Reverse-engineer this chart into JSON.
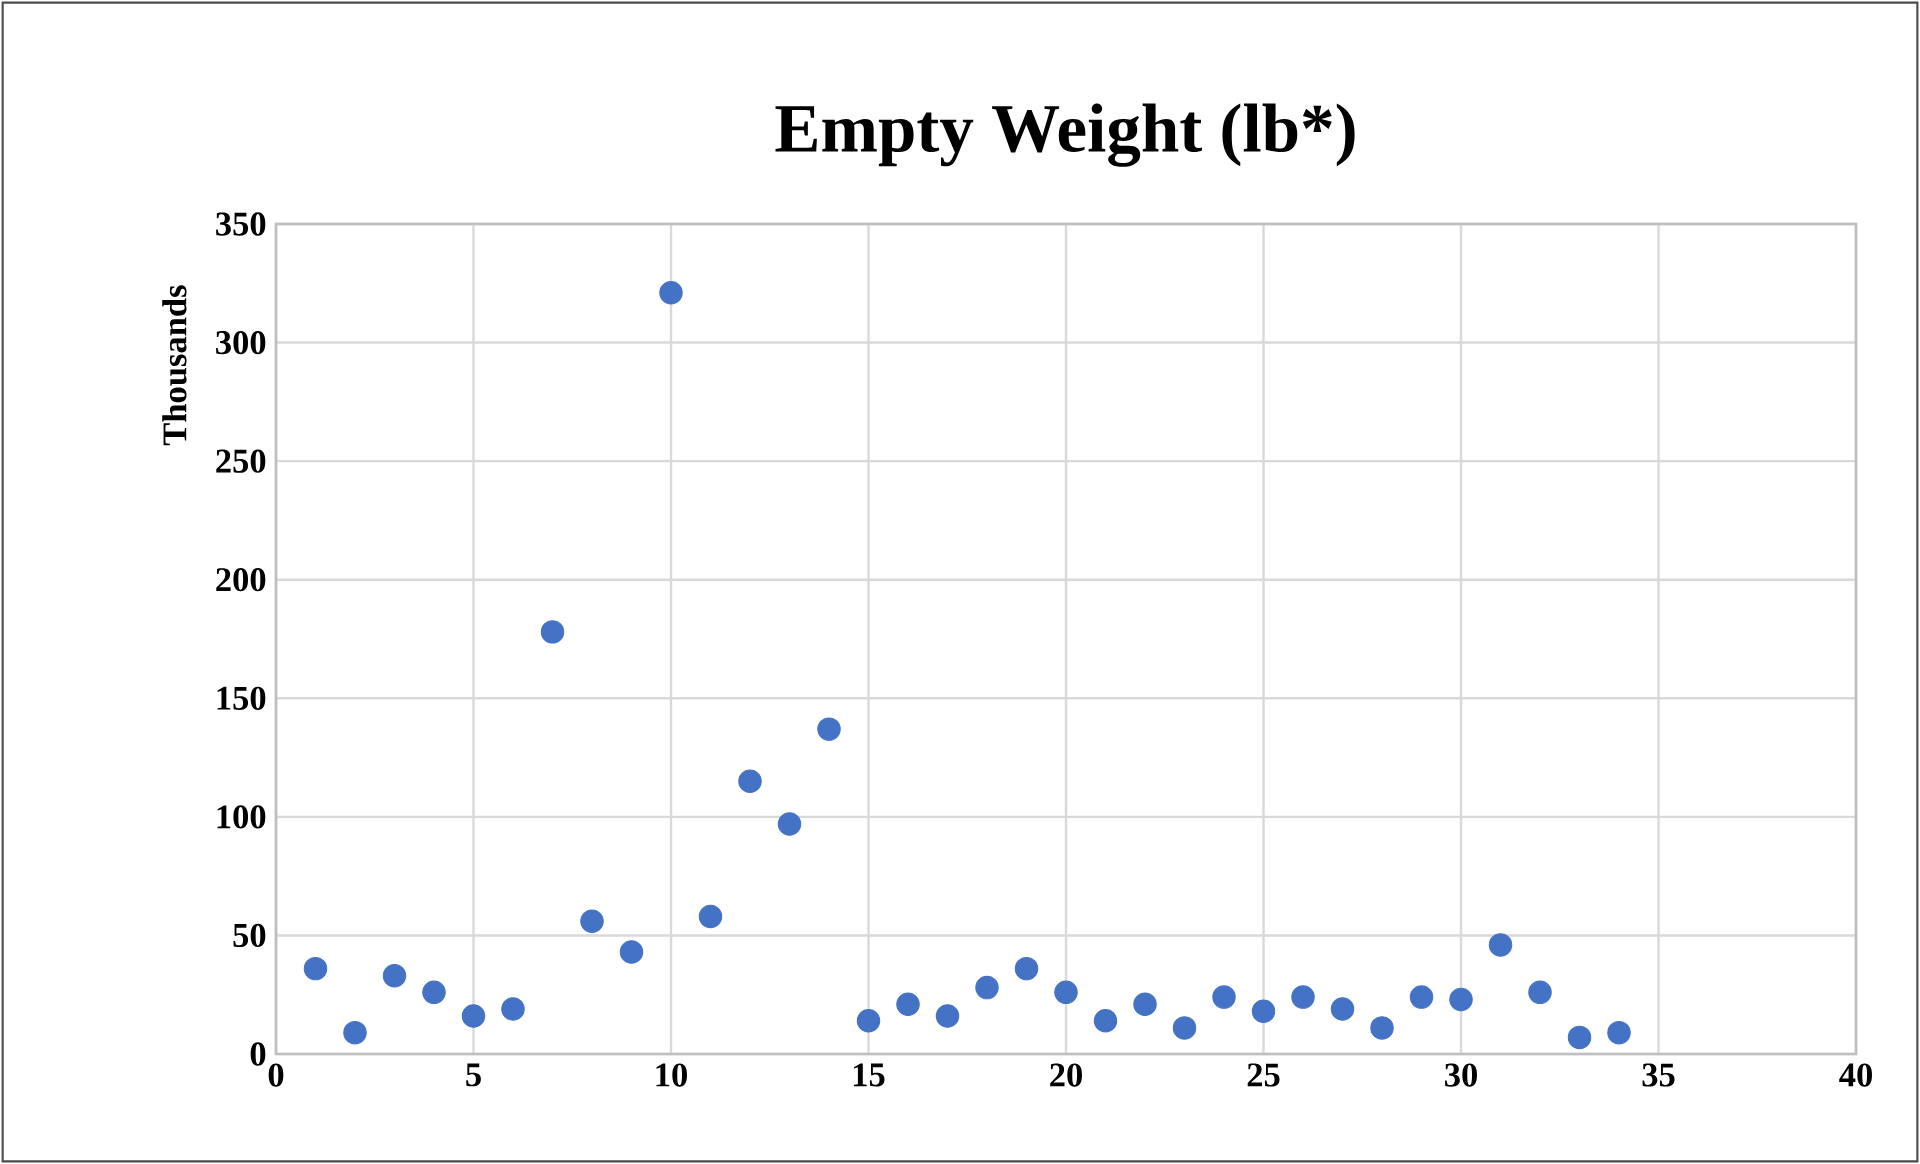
{
  "chart_data": {
    "type": "scatter",
    "title": "Empty Weight (lb*)",
    "ylabel": "Thousands",
    "x": [
      1,
      2,
      3,
      4,
      5,
      6,
      7,
      8,
      9,
      10,
      11,
      12,
      13,
      14,
      15,
      16,
      17,
      18,
      19,
      20,
      21,
      22,
      23,
      24,
      25,
      26,
      27,
      28,
      29,
      30,
      31,
      32,
      33,
      34
    ],
    "values": [
      36,
      9,
      33,
      26,
      16,
      19,
      178,
      56,
      43,
      321,
      58,
      115,
      97,
      137,
      14,
      21,
      16,
      28,
      36,
      26,
      14,
      21,
      11,
      24,
      18,
      24,
      19,
      11,
      24,
      23,
      46,
      26,
      7,
      9
    ],
    "color": "#4472c4",
    "marker": "circle",
    "grid": true,
    "xlim": [
      0,
      40
    ],
    "xticks": [
      0,
      5,
      10,
      15,
      20,
      25,
      30,
      35,
      40
    ],
    "ylim": [
      0,
      350
    ],
    "yticks": [
      0,
      50,
      100,
      150,
      200,
      250,
      300,
      350
    ]
  }
}
